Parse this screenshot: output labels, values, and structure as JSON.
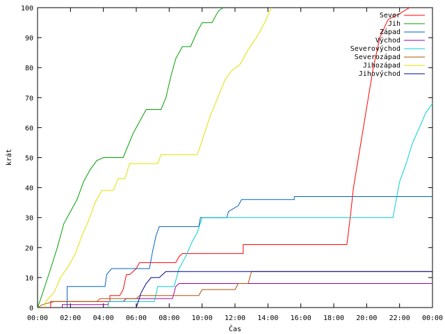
{
  "chart_data": {
    "type": "line",
    "title": "",
    "xlabel": "Čas",
    "ylabel": "krát",
    "xlim": [
      0,
      24
    ],
    "ylim": [
      0,
      100
    ],
    "x_tick_labels": [
      "00:00",
      "02:00",
      "04:00",
      "06:00",
      "08:00",
      "10:00",
      "12:00",
      "14:00",
      "16:00",
      "18:00",
      "20:00",
      "22:00",
      "00:00"
    ],
    "y_tick_labels": [
      "0",
      "10",
      "20",
      "30",
      "40",
      "50",
      "60",
      "70",
      "80",
      "90",
      "100"
    ],
    "legend_position": "top-right",
    "grid": false,
    "series": [
      {
        "name": "Sever",
        "color": "#ff0000",
        "points": [
          [
            0.8,
            0
          ],
          [
            0.8,
            2
          ],
          [
            4.4,
            2
          ],
          [
            4.4,
            4
          ],
          [
            5.0,
            4
          ],
          [
            5.2,
            6
          ],
          [
            5.4,
            11
          ],
          [
            5.6,
            11
          ],
          [
            5.8,
            12
          ],
          [
            6.0,
            13
          ],
          [
            6.2,
            15
          ],
          [
            8.4,
            15
          ],
          [
            8.6,
            17
          ],
          [
            8.8,
            18
          ],
          [
            12.5,
            18
          ],
          [
            12.5,
            21
          ],
          [
            18.8,
            21
          ],
          [
            19.0,
            30
          ],
          [
            19.2,
            40
          ],
          [
            19.5,
            50
          ],
          [
            19.8,
            60
          ],
          [
            20.1,
            70
          ],
          [
            20.4,
            80
          ],
          [
            20.8,
            90
          ],
          [
            21.3,
            96
          ],
          [
            22.0,
            98
          ],
          [
            22.6,
            100
          ]
        ]
      },
      {
        "name": "Jih",
        "color": "#00a000",
        "points": [
          [
            0,
            0
          ],
          [
            0.2,
            3
          ],
          [
            0.5,
            8
          ],
          [
            0.8,
            13
          ],
          [
            1.2,
            20
          ],
          [
            1.6,
            28
          ],
          [
            2.0,
            32
          ],
          [
            2.4,
            36
          ],
          [
            2.8,
            42
          ],
          [
            3.2,
            46
          ],
          [
            3.6,
            49
          ],
          [
            4.0,
            50
          ],
          [
            5.2,
            50
          ],
          [
            5.5,
            54
          ],
          [
            5.8,
            58
          ],
          [
            6.2,
            62
          ],
          [
            6.6,
            66
          ],
          [
            7.5,
            66
          ],
          [
            7.8,
            70
          ],
          [
            8.1,
            77
          ],
          [
            8.4,
            83
          ],
          [
            8.8,
            87
          ],
          [
            9.3,
            87
          ],
          [
            9.7,
            92
          ],
          [
            10.0,
            95
          ],
          [
            10.6,
            95
          ],
          [
            11.0,
            99
          ],
          [
            11.3,
            100
          ]
        ]
      },
      {
        "name": "Západ",
        "color": "#0060c0",
        "points": [
          [
            1.8,
            0
          ],
          [
            1.8,
            7
          ],
          [
            4.1,
            7
          ],
          [
            4.2,
            11
          ],
          [
            4.5,
            13
          ],
          [
            6.8,
            13
          ],
          [
            7.0,
            19
          ],
          [
            7.2,
            24
          ],
          [
            7.4,
            27
          ],
          [
            9.8,
            27
          ],
          [
            9.9,
            30
          ],
          [
            11.5,
            30
          ],
          [
            11.6,
            32
          ],
          [
            12.2,
            34
          ],
          [
            12.4,
            36
          ],
          [
            15.6,
            36
          ],
          [
            15.6,
            37
          ],
          [
            24,
            37
          ]
        ]
      },
      {
        "name": "Východ",
        "color": "#a000a0",
        "points": [
          [
            1.5,
            0
          ],
          [
            1.5,
            1
          ],
          [
            4.3,
            1
          ],
          [
            4.3,
            2
          ],
          [
            5.2,
            2
          ],
          [
            5.4,
            3
          ],
          [
            8.2,
            3
          ],
          [
            8.4,
            7
          ],
          [
            8.6,
            8
          ],
          [
            24,
            8
          ]
        ]
      },
      {
        "name": "Severovýchod",
        "color": "#00d0d0",
        "points": [
          [
            4.3,
            0
          ],
          [
            4.3,
            2
          ],
          [
            7.1,
            2
          ],
          [
            7.3,
            7
          ],
          [
            8.3,
            7
          ],
          [
            8.6,
            13
          ],
          [
            9.0,
            17
          ],
          [
            9.4,
            22
          ],
          [
            9.7,
            25
          ],
          [
            10.0,
            30
          ],
          [
            21.6,
            30
          ],
          [
            21.8,
            36
          ],
          [
            22.0,
            42
          ],
          [
            22.4,
            48
          ],
          [
            22.8,
            55
          ],
          [
            23.2,
            60
          ],
          [
            23.6,
            65
          ],
          [
            24,
            68
          ]
        ]
      },
      {
        "name": "Severozápad",
        "color": "#b05000",
        "points": [
          [
            0,
            0
          ],
          [
            0.3,
            1
          ],
          [
            1.0,
            2
          ],
          [
            3.6,
            2
          ],
          [
            3.8,
            3
          ],
          [
            6.0,
            3
          ],
          [
            6.2,
            4
          ],
          [
            9.8,
            4
          ],
          [
            10.0,
            6
          ],
          [
            12.0,
            6
          ],
          [
            12.2,
            8
          ],
          [
            12.8,
            8
          ],
          [
            13.0,
            12
          ],
          [
            24,
            12
          ]
        ]
      },
      {
        "name": "Jihozápad",
        "color": "#e0e000",
        "points": [
          [
            0.4,
            0
          ],
          [
            0.5,
            2
          ],
          [
            1.0,
            5
          ],
          [
            1.4,
            10
          ],
          [
            1.9,
            14
          ],
          [
            2.3,
            18
          ],
          [
            2.7,
            24
          ],
          [
            3.1,
            29
          ],
          [
            3.5,
            35
          ],
          [
            3.9,
            39
          ],
          [
            4.6,
            39
          ],
          [
            4.9,
            43
          ],
          [
            5.3,
            43
          ],
          [
            5.6,
            48
          ],
          [
            7.3,
            48
          ],
          [
            7.5,
            51
          ],
          [
            9.7,
            51
          ],
          [
            9.9,
            54
          ],
          [
            10.2,
            59
          ],
          [
            10.5,
            64
          ],
          [
            10.8,
            68
          ],
          [
            11.1,
            72
          ],
          [
            11.4,
            76
          ],
          [
            11.8,
            79
          ],
          [
            12.3,
            81
          ],
          [
            12.8,
            86
          ],
          [
            13.3,
            90
          ],
          [
            13.8,
            95
          ],
          [
            14.2,
            100
          ]
        ]
      },
      {
        "name": "Jihovýchod",
        "color": "#000090",
        "points": [
          [
            6.0,
            0
          ],
          [
            6.3,
            5
          ],
          [
            6.6,
            8
          ],
          [
            6.9,
            10
          ],
          [
            7.4,
            10
          ],
          [
            7.8,
            12
          ],
          [
            24,
            12
          ]
        ]
      }
    ]
  }
}
